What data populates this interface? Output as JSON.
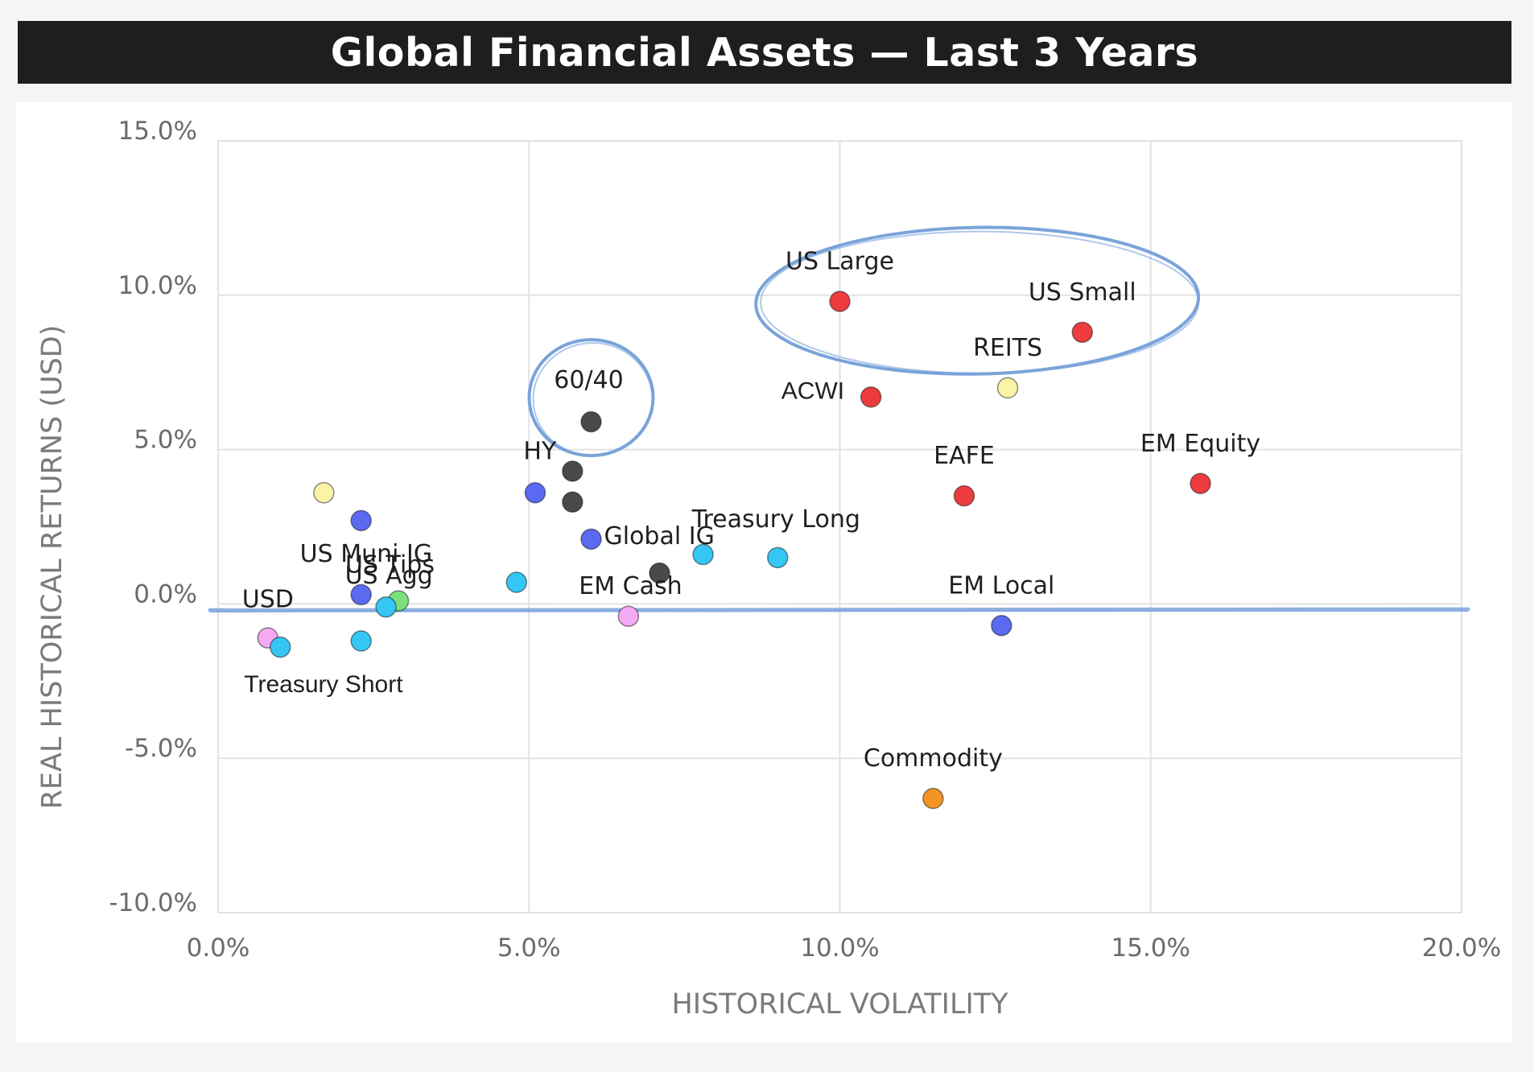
{
  "title": "Global Financial Assets — Last 3 Years",
  "colors": {
    "title_bg": "#1e1e1e",
    "red": "#ec3c3f",
    "dark": "#4a4a4a",
    "blue": "#5b6af0",
    "cyan": "#36c6f4",
    "yellow": "#fbf3a6",
    "pink": "#f5a9f2",
    "green": "#7be07b",
    "orange": "#f29324",
    "annotation": "#7aa3da",
    "grid": "#e2e2e2"
  },
  "chart_data": {
    "type": "scatter",
    "title": "Global Financial Assets — Last 3 Years",
    "xlabel": "HISTORICAL VOLATILITY",
    "ylabel": "REAL HISTORICAL RETURNS (USD)",
    "xlim": [
      0,
      20
    ],
    "ylim": [
      -10,
      15
    ],
    "x_ticks": [
      "0.0%",
      "5.0%",
      "10.0%",
      "15.0%",
      "20.0%"
    ],
    "y_ticks": [
      "15.0%",
      "10.0%",
      "5.0%",
      "0.0%",
      "-5.0%",
      "-10.0%"
    ],
    "grid": true,
    "points": [
      {
        "label": "US Large",
        "x": 10.0,
        "y": 9.8,
        "color": "red"
      },
      {
        "label": "US Small",
        "x": 13.9,
        "y": 8.8,
        "color": "red"
      },
      {
        "label": "REITS",
        "x": 12.7,
        "y": 7.0,
        "color": "yellow"
      },
      {
        "label": "ACWI",
        "x": 10.5,
        "y": 6.7,
        "color": "red"
      },
      {
        "label": "60/40",
        "x": 6.0,
        "y": 5.9,
        "color": "dark"
      },
      {
        "label": "HY",
        "x": 5.7,
        "y": 4.3,
        "color": "dark"
      },
      {
        "label": "EAFE",
        "x": 12.0,
        "y": 3.5,
        "color": "red"
      },
      {
        "label": "EM Equity",
        "x": 15.8,
        "y": 3.9,
        "color": "red"
      },
      {
        "label": "",
        "x": 5.7,
        "y": 3.3,
        "color": "dark"
      },
      {
        "label": "",
        "x": 5.1,
        "y": 3.6,
        "color": "blue"
      },
      {
        "label": "",
        "x": 1.7,
        "y": 3.6,
        "color": "yellow"
      },
      {
        "label": "",
        "x": 2.3,
        "y": 2.7,
        "color": "blue"
      },
      {
        "label": "Global IG",
        "x": 6.0,
        "y": 2.1,
        "color": "blue"
      },
      {
        "label": "Treasury Long",
        "x": 9.0,
        "y": 1.5,
        "color": "cyan"
      },
      {
        "label": "",
        "x": 7.8,
        "y": 1.6,
        "color": "cyan"
      },
      {
        "label": "EM Cash",
        "x": 7.1,
        "y": 1.0,
        "color": "dark"
      },
      {
        "label": "",
        "x": 4.8,
        "y": 0.7,
        "color": "cyan"
      },
      {
        "label": "US Muni IG",
        "x": 2.3,
        "y": 0.3,
        "color": "blue"
      },
      {
        "label": "US Tips",
        "x": 2.9,
        "y": 0.1,
        "color": "green"
      },
      {
        "label": "US Agg",
        "x": 2.7,
        "y": -0.1,
        "color": "cyan"
      },
      {
        "label": "USD",
        "x": 0.8,
        "y": -1.1,
        "color": "pink"
      },
      {
        "label": "Treasury Short",
        "x": 1.0,
        "y": -1.4,
        "color": "cyan"
      },
      {
        "label": "",
        "x": 2.3,
        "y": -1.2,
        "color": "cyan"
      },
      {
        "label": "",
        "x": 6.6,
        "y": -0.4,
        "color": "pink"
      },
      {
        "label": "EM Local",
        "x": 12.6,
        "y": -0.7,
        "color": "blue"
      },
      {
        "label": "Commodity",
        "x": 11.5,
        "y": -6.3,
        "color": "orange"
      }
    ],
    "annotations": [
      {
        "type": "ellipse",
        "around": [
          "US Large",
          "US Small"
        ]
      },
      {
        "type": "circle",
        "around": [
          "60/40"
        ]
      },
      {
        "type": "hand-drawn line",
        "at_y": -0.2
      }
    ]
  }
}
